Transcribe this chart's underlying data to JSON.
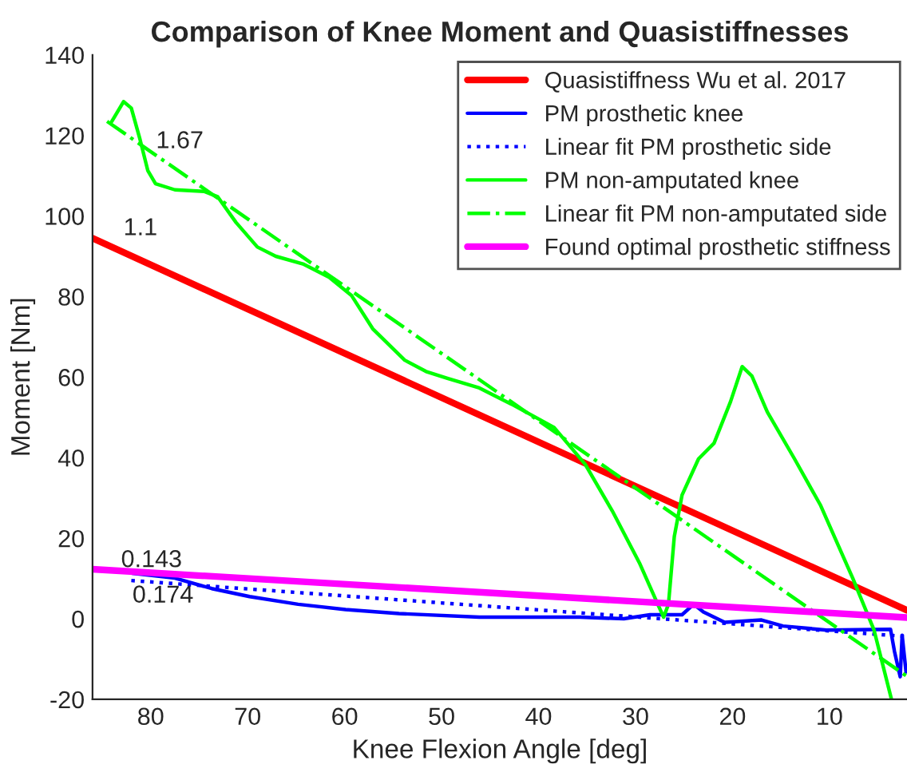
{
  "chart_data": {
    "type": "line",
    "title": "Comparison of Knee Moment and Quasistiffnesses",
    "xlabel": "Knee Flexion Angle [deg]",
    "ylabel": "Moment [Nm]",
    "xlim": [
      86,
      2
    ],
    "ylim": [
      -20,
      140
    ],
    "xticks": [
      80,
      70,
      60,
      50,
      40,
      30,
      20,
      10
    ],
    "yticks": [
      -20,
      0,
      20,
      40,
      60,
      80,
      100,
      120,
      140
    ],
    "legend": "top right",
    "grid": false,
    "series": [
      {
        "name": "Quasistiffness Wu et al. 2017",
        "color": "#ff0000",
        "line_style": "solid",
        "x": [
          86,
          2
        ],
        "values": [
          94.5,
          2.1
        ]
      },
      {
        "name": "PM prosthetic knee",
        "color": "#0000ff",
        "line_style": "solid",
        "x": [
          81.9,
          77.5,
          73.7,
          69.8,
          64.8,
          59.9,
          54.4,
          46.1,
          43.9,
          35.7,
          31.2,
          28.5,
          25.2,
          24,
          23,
          20.8,
          17,
          14.8,
          10.3,
          3.7,
          3.3,
          2.7,
          2.5,
          2.1
        ],
        "values": [
          11.3,
          10.1,
          7.5,
          5.5,
          3.6,
          2.3,
          1.3,
          0.4,
          0.4,
          0.4,
          0,
          1,
          1,
          3.6,
          1.7,
          -0.9,
          -0.3,
          -1.8,
          -2.8,
          -2.6,
          -8,
          -14.4,
          -4.1,
          -13.2
        ]
      },
      {
        "name": "Linear fit PM prosthetic side",
        "color": "#0000ff",
        "line_style": "dotted",
        "x": [
          82,
          2
        ],
        "values": [
          9.5,
          -4.4
        ]
      },
      {
        "name": "PM non-amputated knee",
        "color": "#00ff00",
        "line_style": "solid",
        "x": [
          84,
          82.8,
          82,
          81.1,
          80.3,
          79.5,
          77.5,
          74.5,
          73.1,
          71.2,
          69,
          67.1,
          64.3,
          61.6,
          59.3,
          57.1,
          53.8,
          51.6,
          49.4,
          46.1,
          42.8,
          38.4,
          35.2,
          32.4,
          29.6,
          27.7,
          27.1,
          26.6,
          26,
          25.2,
          23.5,
          21.9,
          20.2,
          19,
          18,
          16.4,
          13.6,
          10.9,
          7.6,
          5.4,
          3.6
        ],
        "values": [
          123.5,
          128.4,
          126.8,
          119,
          111.3,
          108,
          106.5,
          106.1,
          104.8,
          98.4,
          92.3,
          90,
          88.1,
          84.8,
          80.3,
          72,
          64.2,
          61.4,
          59.7,
          57.3,
          53.3,
          47.5,
          38.4,
          26.8,
          13.9,
          3.6,
          0.4,
          3.6,
          20.4,
          30.7,
          39.7,
          43.6,
          53.9,
          62.6,
          60.3,
          51.3,
          39.7,
          28.1,
          10.1,
          -2.8,
          -20
        ]
      },
      {
        "name": "Linear fit PM non-amputated side",
        "color": "#00ff00",
        "line_style": "dashdot",
        "x": [
          84.5,
          2
        ],
        "values": [
          123.5,
          -14.3
        ]
      },
      {
        "name": "Found optimal prosthetic stiffness",
        "color": "#ff00ff",
        "line_style": "solid",
        "x": [
          86,
          2
        ],
        "values": [
          12.3,
          0.3
        ]
      }
    ],
    "annotations": [
      "1.67",
      "1.1",
      "0.143",
      "0.174"
    ]
  }
}
